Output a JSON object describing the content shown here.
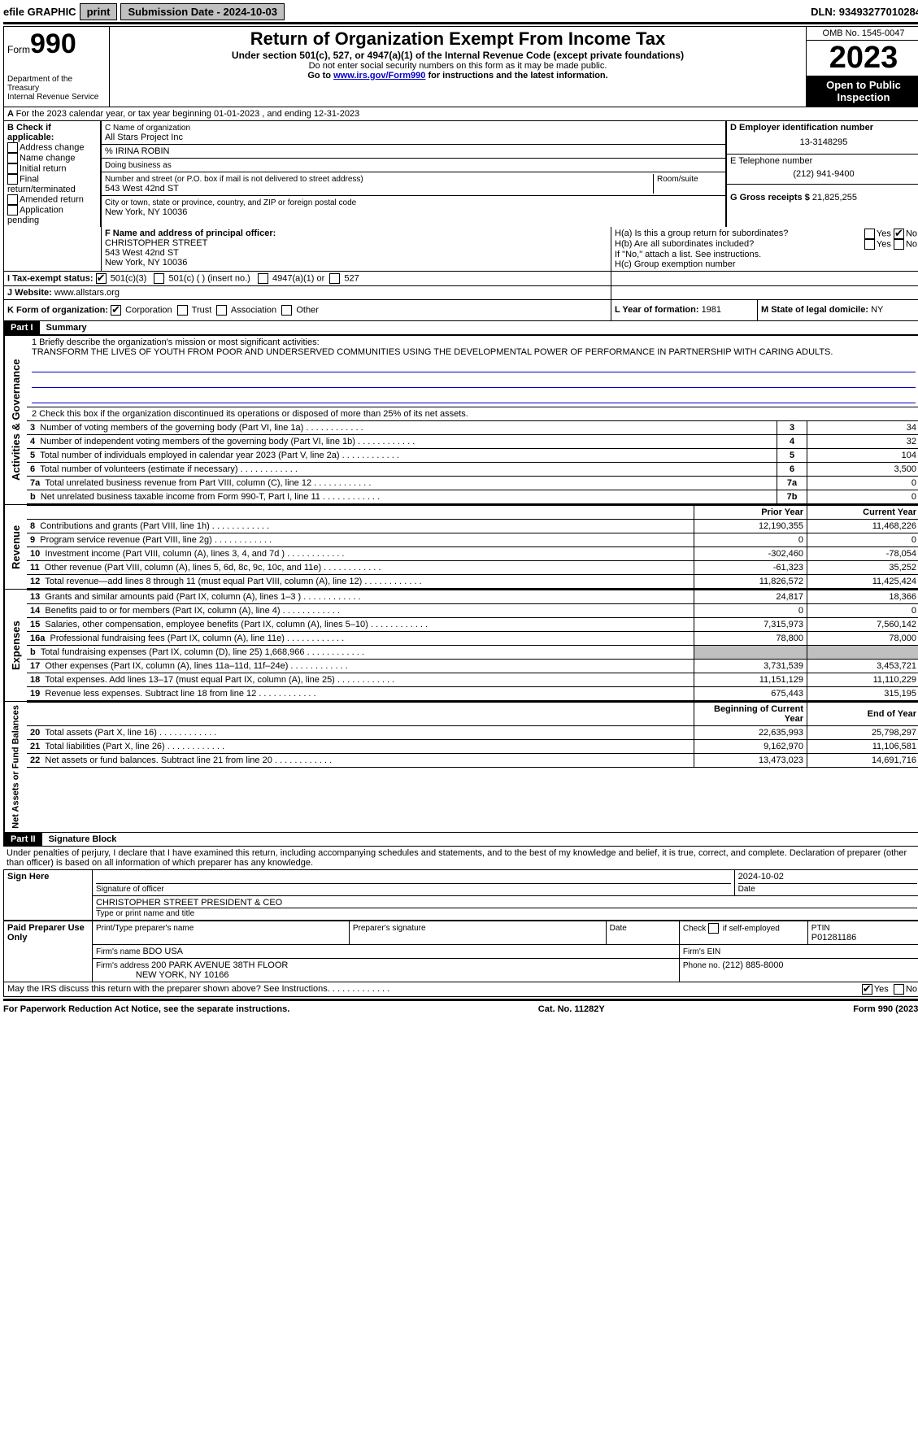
{
  "topbar": {
    "efile": "efile GRAPHIC",
    "print": "print",
    "submission_label": "Submission Date - ",
    "submission_date": "2024-10-03",
    "dln_label": "DLN: ",
    "dln": "93493277010284"
  },
  "header": {
    "form_prefix": "Form",
    "form_number": "990",
    "dept": "Department of the Treasury",
    "irs": "Internal Revenue Service",
    "title": "Return of Organization Exempt From Income Tax",
    "subtitle": "Under section 501(c), 527, or 4947(a)(1) of the Internal Revenue Code (except private foundations)",
    "note1": "Do not enter social security numbers on this form as it may be made public.",
    "note2_pre": "Go to ",
    "note2_link": "www.irs.gov/Form990",
    "note2_post": " for instructions and the latest information.",
    "omb": "OMB No. 1545-0047",
    "year": "2023",
    "open_public": "Open to Public Inspection"
  },
  "line_a": "For the 2023 calendar year, or tax year beginning 01-01-2023   , and ending 12-31-2023",
  "box_b": {
    "title": "B Check if applicable:",
    "opts": [
      "Address change",
      "Name change",
      "Initial return",
      "Final return/terminated",
      "Amended return",
      "Application pending"
    ]
  },
  "box_c": {
    "label": "C Name of organization",
    "name": "All Stars Project Inc",
    "care_of": "% IRINA ROBIN",
    "dba_label": "Doing business as",
    "street_label": "Number and street (or P.O. box if mail is not delivered to street address)",
    "room_label": "Room/suite",
    "street": "543 West 42nd ST",
    "city_label": "City or town, state or province, country, and ZIP or foreign postal code",
    "city": "New York, NY  10036"
  },
  "box_d": {
    "label": "D Employer identification number",
    "value": "13-3148295"
  },
  "box_e": {
    "label": "E Telephone number",
    "value": "(212) 941-9400"
  },
  "box_g": {
    "label": "G Gross receipts $ ",
    "value": "21,825,255"
  },
  "box_f": {
    "label": "F  Name and address of principal officer:",
    "name": "CHRISTOPHER STREET",
    "street": "543 West 42nd ST",
    "city": "New York, NY  10036"
  },
  "box_h": {
    "a": "H(a)  Is this a group return for subordinates?",
    "b": "H(b)  Are all subordinates included?",
    "b_note": "If \"No,\" attach a list. See instructions.",
    "c": "H(c)  Group exemption number  "
  },
  "box_i": {
    "label": "I   Tax-exempt status:",
    "o1": "501(c)(3)",
    "o2": "501(c) (  ) (insert no.)",
    "o3": "4947(a)(1) or",
    "o4": "527"
  },
  "box_j": {
    "label": "J   Website: ",
    "value": " www.allstars.org"
  },
  "box_k": {
    "label": "K Form of organization:",
    "opts": [
      "Corporation",
      "Trust",
      "Association",
      "Other"
    ]
  },
  "box_l": {
    "label": "L Year of formation: ",
    "value": "1981"
  },
  "box_m": {
    "label": "M State of legal domicile: ",
    "value": "NY"
  },
  "part1": {
    "header": "Part I",
    "title": "Summary",
    "sections": {
      "gov": "Activities & Governance",
      "rev": "Revenue",
      "exp": "Expenses",
      "net": "Net Assets or Fund Balances"
    },
    "q1_label": "1  Briefly describe the organization's mission or most significant activities:",
    "q1_text": "TRANSFORM THE LIVES OF YOUTH FROM POOR AND UNDERSERVED COMMUNITIES USING THE DEVELOPMENTAL POWER OF PERFORMANCE IN PARTNERSHIP WITH CARING ADULTS.",
    "q2": "2   Check this box       if the organization discontinued its operations or disposed of more than 25% of its net assets.",
    "rows_gov": [
      {
        "n": "3",
        "t": "Number of voting members of the governing body (Part VI, line 1a)",
        "idx": "3",
        "v": "34"
      },
      {
        "n": "4",
        "t": "Number of independent voting members of the governing body (Part VI, line 1b)",
        "idx": "4",
        "v": "32"
      },
      {
        "n": "5",
        "t": "Total number of individuals employed in calendar year 2023 (Part V, line 2a)",
        "idx": "5",
        "v": "104"
      },
      {
        "n": "6",
        "t": "Total number of volunteers (estimate if necessary)",
        "idx": "6",
        "v": "3,500"
      },
      {
        "n": "7a",
        "t": "Total unrelated business revenue from Part VIII, column (C), line 12",
        "idx": "7a",
        "v": "0"
      },
      {
        "n": "b",
        "t": "Net unrelated business taxable income from Form 990-T, Part I, line 11",
        "idx": "7b",
        "v": "0"
      }
    ],
    "col_prior": "Prior Year",
    "col_current": "Current Year",
    "rows_rev": [
      {
        "n": "8",
        "t": "Contributions and grants (Part VIII, line 1h)",
        "p": "12,190,355",
        "c": "11,468,226"
      },
      {
        "n": "9",
        "t": "Program service revenue (Part VIII, line 2g)",
        "p": "0",
        "c": "0"
      },
      {
        "n": "10",
        "t": "Investment income (Part VIII, column (A), lines 3, 4, and 7d )",
        "p": "-302,460",
        "c": "-78,054"
      },
      {
        "n": "11",
        "t": "Other revenue (Part VIII, column (A), lines 5, 6d, 8c, 9c, 10c, and 11e)",
        "p": "-61,323",
        "c": "35,252"
      },
      {
        "n": "12",
        "t": "Total revenue—add lines 8 through 11 (must equal Part VIII, column (A), line 12)",
        "p": "11,826,572",
        "c": "11,425,424"
      }
    ],
    "rows_exp": [
      {
        "n": "13",
        "t": "Grants and similar amounts paid (Part IX, column (A), lines 1–3 )",
        "p": "24,817",
        "c": "18,366"
      },
      {
        "n": "14",
        "t": "Benefits paid to or for members (Part IX, column (A), line 4)",
        "p": "0",
        "c": "0"
      },
      {
        "n": "15",
        "t": "Salaries, other compensation, employee benefits (Part IX, column (A), lines 5–10)",
        "p": "7,315,973",
        "c": "7,560,142"
      },
      {
        "n": "16a",
        "t": "Professional fundraising fees (Part IX, column (A), line 11e)",
        "p": "78,800",
        "c": "78,000"
      },
      {
        "n": "b",
        "t": "Total fundraising expenses (Part IX, column (D), line 25) 1,668,966",
        "p": "",
        "c": "",
        "shade": true
      },
      {
        "n": "17",
        "t": "Other expenses (Part IX, column (A), lines 11a–11d, 11f–24e)",
        "p": "3,731,539",
        "c": "3,453,721"
      },
      {
        "n": "18",
        "t": "Total expenses. Add lines 13–17 (must equal Part IX, column (A), line 25)",
        "p": "11,151,129",
        "c": "11,110,229"
      },
      {
        "n": "19",
        "t": "Revenue less expenses. Subtract line 18 from line 12",
        "p": "675,443",
        "c": "315,195"
      }
    ],
    "col_begin": "Beginning of Current Year",
    "col_end": "End of Year",
    "rows_net": [
      {
        "n": "20",
        "t": "Total assets (Part X, line 16)",
        "p": "22,635,993",
        "c": "25,798,297"
      },
      {
        "n": "21",
        "t": "Total liabilities (Part X, line 26)",
        "p": "9,162,970",
        "c": "11,106,581"
      },
      {
        "n": "22",
        "t": "Net assets or fund balances. Subtract line 21 from line 20",
        "p": "13,473,023",
        "c": "14,691,716"
      }
    ]
  },
  "part2": {
    "header": "Part II",
    "title": "Signature Block",
    "declaration": "Under penalties of perjury, I declare that I have examined this return, including accompanying schedules and statements, and to the best of my knowledge and belief, it is true, correct, and complete. Declaration of preparer (other than officer) is based on all information of which preparer has any knowledge."
  },
  "sign": {
    "label": "Sign Here",
    "sig_label": "Signature of officer",
    "date_label": "Date",
    "date": "2024-10-02",
    "name_title": "CHRISTOPHER STREET  PRESIDENT & CEO",
    "type_label": "Type or print name and title"
  },
  "paid": {
    "label": "Paid Preparer Use Only",
    "h1": "Print/Type preparer's name",
    "h2": "Preparer's signature",
    "h3": "Date",
    "h4_pre": "Check ",
    "h4_post": " if self-employed",
    "h5": "PTIN",
    "ptin": "P01281186",
    "firm_label": "Firm's name     ",
    "firm": "BDO USA",
    "ein_label": "Firm's EIN  ",
    "addr_label": "Firm's address ",
    "addr1": "200 PARK AVENUE 38TH FLOOR",
    "addr2": "NEW YORK, NY  10166",
    "phone_label": "Phone no. ",
    "phone": "(212) 885-8000"
  },
  "discuss": "May the IRS discuss this return with the preparer shown above? See Instructions.",
  "footer": {
    "left": "For Paperwork Reduction Act Notice, see the separate instructions.",
    "mid": "Cat. No. 11282Y",
    "right_pre": "Form ",
    "right_form": "990",
    "right_post": " (2023)"
  },
  "yes": "Yes",
  "no": "No"
}
